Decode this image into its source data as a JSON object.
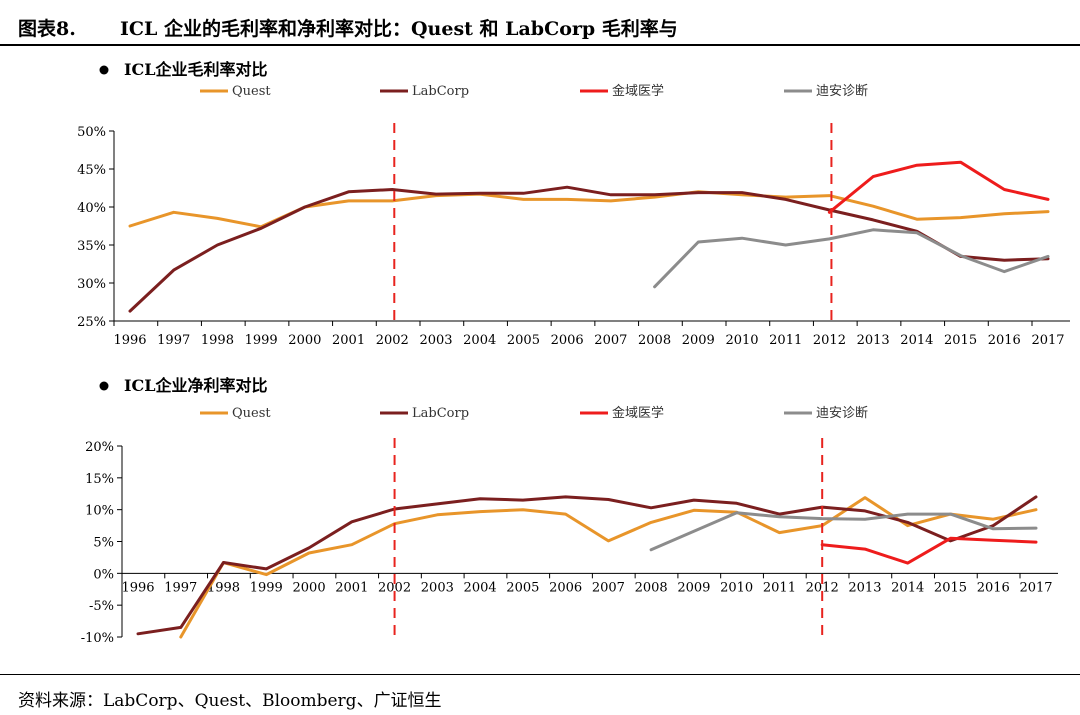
{
  "figure": {
    "label": "图表8.",
    "title": "ICL 企业的毛利率和净利率对比：Quest 和 LabCorp 毛利率与"
  },
  "source": {
    "prefix": "资料来源：",
    "items": [
      "LabCorp",
      "Quest",
      "Bloomberg",
      "广证恒生"
    ],
    "separator": "、"
  },
  "colors": {
    "Quest": "#E8952A",
    "LabCorp": "#7B1F1F",
    "金域医学": "#EE1C1C",
    "迪安诊断": "#8C8C8C",
    "reference_line": "#E8231E"
  },
  "chart_data": [
    {
      "type": "line",
      "title": "ICL企业毛利率对比",
      "x": [
        "1996",
        "1997",
        "1998",
        "1999",
        "2000",
        "2001",
        "2002",
        "2003",
        "2004",
        "2005",
        "2006",
        "2007",
        "2008",
        "2009",
        "2010",
        "2011",
        "2012",
        "2013",
        "2014",
        "2015",
        "2016",
        "2017"
      ],
      "ylim": [
        25,
        50
      ],
      "yticks": [
        25,
        30,
        35,
        40,
        45,
        50
      ],
      "ytick_labels": [
        "25%",
        "30%",
        "35%",
        "40%",
        "45%",
        "50%"
      ],
      "grid": false,
      "legend_position": "top",
      "reference_lines_x": [
        "2002",
        "2012"
      ],
      "series": [
        {
          "name": "Quest",
          "values": [
            37.5,
            39.3,
            38.5,
            37.4,
            40.0,
            40.8,
            40.8,
            41.5,
            41.7,
            41.0,
            41.0,
            40.8,
            41.3,
            42.0,
            41.6,
            41.3,
            41.5,
            40.1,
            38.4,
            38.6,
            39.1,
            39.4
          ]
        },
        {
          "name": "LabCorp",
          "values": [
            26.3,
            31.7,
            35.0,
            37.2,
            40.0,
            42.0,
            42.3,
            41.7,
            41.8,
            41.8,
            42.6,
            41.6,
            41.6,
            41.9,
            41.9,
            41.0,
            39.6,
            38.3,
            36.8,
            33.5,
            33.0,
            33.2
          ]
        },
        {
          "name": "金域医学",
          "values": [
            null,
            null,
            null,
            null,
            null,
            null,
            null,
            null,
            null,
            null,
            null,
            null,
            null,
            null,
            null,
            null,
            39.3,
            44.0,
            45.5,
            45.9,
            42.3,
            41.0
          ]
        },
        {
          "name": "迪安诊断",
          "values": [
            null,
            null,
            null,
            null,
            null,
            null,
            null,
            null,
            null,
            null,
            null,
            null,
            29.5,
            35.4,
            35.9,
            35.0,
            35.8,
            37.0,
            36.6,
            33.6,
            31.5,
            33.5
          ]
        }
      ]
    },
    {
      "type": "line",
      "title": "ICL企业净利率对比",
      "x": [
        "1996",
        "1997",
        "1998",
        "1999",
        "2000",
        "2001",
        "2002",
        "2003",
        "2004",
        "2005",
        "2006",
        "2007",
        "2008",
        "2009",
        "2010",
        "2011",
        "2012",
        "2013",
        "2014",
        "2015",
        "2016",
        "2017"
      ],
      "ylim": [
        -10,
        20
      ],
      "yticks": [
        -10,
        -5,
        0,
        5,
        10,
        15,
        20
      ],
      "ytick_labels": [
        "-10%",
        "-5%",
        "0%",
        "5%",
        "10%",
        "15%",
        "20%"
      ],
      "grid": false,
      "legend_position": "top",
      "reference_lines_x": [
        "2002",
        "2012"
      ],
      "series": [
        {
          "name": "Quest",
          "values": [
            null,
            -10.0,
            1.7,
            -0.2,
            3.2,
            4.5,
            7.8,
            9.2,
            9.7,
            10.0,
            9.3,
            5.1,
            8.0,
            9.9,
            9.6,
            6.4,
            7.5,
            11.9,
            7.5,
            9.3,
            8.5,
            10.0
          ]
        },
        {
          "name": "LabCorp",
          "values": [
            -9.5,
            -8.5,
            1.7,
            0.7,
            4.0,
            8.1,
            10.1,
            10.9,
            11.7,
            11.5,
            12.0,
            11.6,
            10.3,
            11.5,
            11.0,
            9.3,
            10.4,
            9.8,
            8.0,
            5.1,
            7.5,
            12.0
          ]
        },
        {
          "name": "金域医学",
          "values": [
            null,
            null,
            null,
            null,
            null,
            null,
            null,
            null,
            null,
            null,
            null,
            null,
            null,
            null,
            null,
            null,
            4.5,
            3.8,
            1.6,
            5.5,
            5.2,
            4.9
          ]
        },
        {
          "name": "迪安诊断",
          "values": [
            null,
            null,
            null,
            null,
            null,
            null,
            null,
            null,
            null,
            null,
            null,
            null,
            3.7,
            6.6,
            9.5,
            8.9,
            8.6,
            8.5,
            9.3,
            9.3,
            7.0,
            7.1
          ]
        }
      ]
    }
  ]
}
